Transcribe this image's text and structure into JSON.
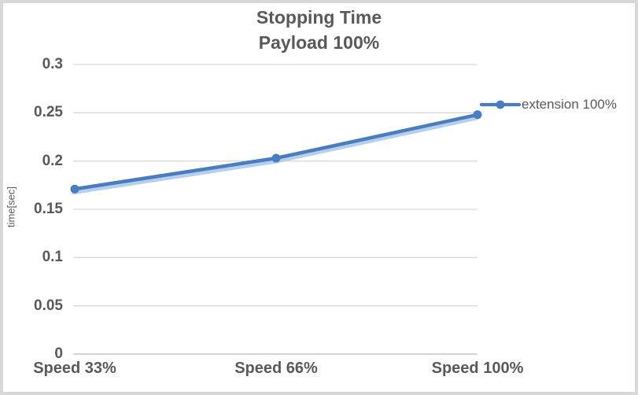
{
  "chart_data": {
    "type": "line",
    "title": "Stopping Time",
    "subtitle": "Payload 100%",
    "categories": [
      "Speed 33%",
      "Speed 66%",
      "Speed 100%"
    ],
    "series": [
      {
        "name": "extension 100%",
        "values": [
          0.171,
          0.203,
          0.248
        ]
      }
    ],
    "xlabel": "",
    "ylabel": "time[sec]",
    "ylim": [
      0,
      0.3
    ],
    "yticks": [
      0,
      0.05,
      0.1,
      0.15,
      0.2,
      0.25,
      0.3
    ],
    "ytick_labels": [
      "0",
      "0.05",
      "0.1",
      "0.15",
      "0.2",
      "0.25",
      "0.3"
    ],
    "grid": "horizontal",
    "legend_position": "right",
    "colors": {
      "line": "#4a7dbf",
      "line_shadow": "#a9c7e9",
      "gridline": "#d9d9d9",
      "axis_line": "#d3d3d3",
      "text": "#595959",
      "frame": "#d8d8d8"
    }
  }
}
